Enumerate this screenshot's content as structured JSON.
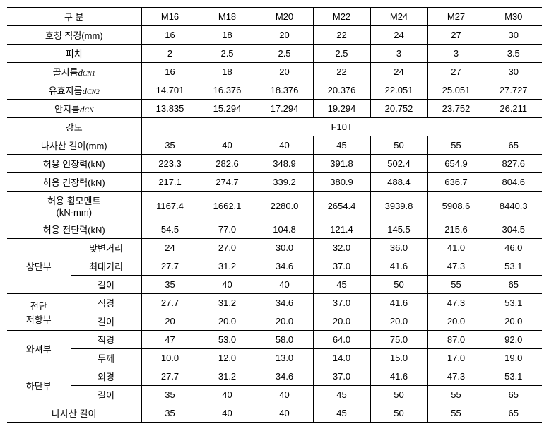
{
  "headers": {
    "label": "구 분",
    "cols": [
      "M16",
      "M18",
      "M20",
      "M22",
      "M24",
      "M27",
      "M30"
    ]
  },
  "rows_full": [
    {
      "label_html": "호칭 직경(mm)",
      "vals": [
        "16",
        "18",
        "20",
        "22",
        "24",
        "27",
        "30"
      ]
    },
    {
      "label_html": "피치",
      "vals": [
        "2",
        "2.5",
        "2.5",
        "2.5",
        "3",
        "3",
        "3.5"
      ]
    },
    {
      "label_html": "골지름<span class='sub'>d</span><span class='subsc'>CN1</span>",
      "vals": [
        "16",
        "18",
        "20",
        "22",
        "24",
        "27",
        "30"
      ]
    },
    {
      "label_html": "유효지름<span class='sub'>d</span><span class='subsc'>CN2</span>",
      "vals": [
        "14.701",
        "16.376",
        "18.376",
        "20.376",
        "22.051",
        "25.051",
        "27.727"
      ]
    },
    {
      "label_html": "안지름<span class='sub'>d</span><span class='subsc'>CN</span>",
      "vals": [
        "13.835",
        "15.294",
        "17.294",
        "19.294",
        "20.752",
        "23.752",
        "26.211"
      ]
    }
  ],
  "strength": {
    "label": "강도",
    "value": "F10T"
  },
  "rows_full2": [
    {
      "label_html": "나사산 길이(mm)",
      "vals": [
        "35",
        "40",
        "40",
        "45",
        "50",
        "55",
        "65"
      ]
    },
    {
      "label_html": "허용 인장력(kN)",
      "vals": [
        "223.3",
        "282.6",
        "348.9",
        "391.8",
        "502.4",
        "654.9",
        "827.6"
      ]
    },
    {
      "label_html": "허용 긴장력(kN)",
      "vals": [
        "217.1",
        "274.7",
        "339.2",
        "380.9",
        "488.4",
        "636.7",
        "804.6"
      ]
    },
    {
      "label_html": "허용 휨모멘트<br>(kN·mm)",
      "vals": [
        "1167.4",
        "1662.1",
        "2280.0",
        "2654.4",
        "3939.8",
        "5908.6",
        "8440.3"
      ]
    },
    {
      "label_html": "허용 전단력(kN)",
      "vals": [
        "54.5",
        "77.0",
        "104.8",
        "121.4",
        "145.5",
        "215.6",
        "304.5"
      ]
    }
  ],
  "groups": [
    {
      "group": "상단부",
      "sub": [
        {
          "label": "맞변거리",
          "vals": [
            "24",
            "27.0",
            "30.0",
            "32.0",
            "36.0",
            "41.0",
            "46.0"
          ]
        },
        {
          "label": "최대거리",
          "vals": [
            "27.7",
            "31.2",
            "34.6",
            "37.0",
            "41.6",
            "47.3",
            "53.1"
          ]
        },
        {
          "label": "길이",
          "vals": [
            "35",
            "40",
            "40",
            "45",
            "50",
            "55",
            "65"
          ]
        }
      ]
    },
    {
      "group": "전단<br>저항부",
      "sub": [
        {
          "label": "직경",
          "vals": [
            "27.7",
            "31.2",
            "34.6",
            "37.0",
            "41.6",
            "47.3",
            "53.1"
          ]
        },
        {
          "label": "길이",
          "vals": [
            "20",
            "20.0",
            "20.0",
            "20.0",
            "20.0",
            "20.0",
            "20.0"
          ]
        }
      ]
    },
    {
      "group": "와셔부",
      "sub": [
        {
          "label": "직경",
          "vals": [
            "47",
            "53.0",
            "58.0",
            "64.0",
            "75.0",
            "87.0",
            "92.0"
          ]
        },
        {
          "label": "두께",
          "vals": [
            "10.0",
            "12.0",
            "13.0",
            "14.0",
            "15.0",
            "17.0",
            "19.0"
          ]
        }
      ]
    },
    {
      "group": "하단부",
      "sub": [
        {
          "label": "외경",
          "vals": [
            "27.7",
            "31.2",
            "34.6",
            "37.0",
            "41.6",
            "47.3",
            "53.1"
          ]
        },
        {
          "label": "길이",
          "vals": [
            "35",
            "40",
            "40",
            "45",
            "50",
            "55",
            "65"
          ]
        }
      ]
    }
  ],
  "last_row": {
    "label": "나사산 길이",
    "vals": [
      "35",
      "40",
      "40",
      "45",
      "50",
      "55",
      "65"
    ]
  }
}
